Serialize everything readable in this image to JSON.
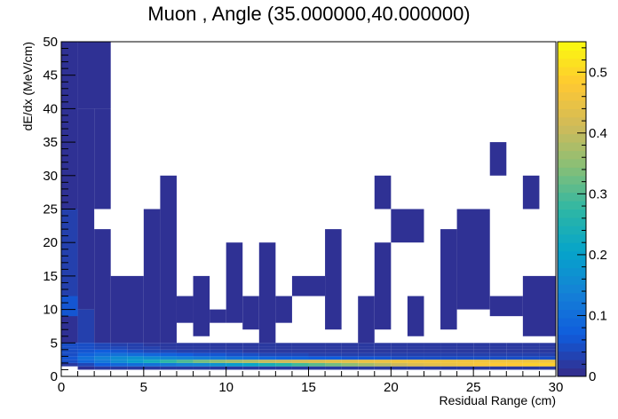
{
  "chart_data": {
    "type": "heatmap",
    "title": "Muon , Angle (35.000000,40.000000)",
    "xlabel": "Residual Range (cm)",
    "ylabel": "dE/dx (MeV/cm)",
    "xlim": [
      0,
      30
    ],
    "ylim": [
      0,
      50
    ],
    "zlim": [
      0,
      0.55
    ],
    "x_ticks": [
      0,
      5,
      10,
      15,
      20,
      25,
      30
    ],
    "y_ticks": [
      0,
      5,
      10,
      15,
      20,
      25,
      30,
      35,
      40,
      45,
      50
    ],
    "z_ticks": [
      0,
      0.1,
      0.2,
      0.3,
      0.4,
      0.5
    ],
    "x_bins": 30,
    "y_bins": 100,
    "grid": false,
    "colormap": "kBird",
    "colors": {
      "bird": [
        "#352a87",
        "#0f5cdd",
        "#1481d6",
        "#06a4ca",
        "#2eb7a4",
        "#87bf77",
        "#d1bb59",
        "#fec832",
        "#f9fb0e"
      ],
      "empty": "#ffffff",
      "axis": "#000000"
    },
    "bins_low": [
      [
        0,
        1,
        2,
        3,
        4,
        5,
        6,
        7,
        8,
        9,
        10,
        11,
        12,
        13,
        14,
        15,
        16,
        17,
        18,
        19,
        20,
        21,
        22,
        23,
        24,
        25,
        26,
        27,
        28,
        29
      ],
      [
        1.0,
        1.5,
        2.0,
        2.5,
        3.0,
        3.5,
        4.0,
        4.5
      ],
      {
        "x0": [
          0.0,
          0.02,
          0.05,
          0.06,
          0.05,
          0.05,
          0.05,
          0.05
        ],
        "x1": [
          0.01,
          0.04,
          0.09,
          0.11,
          0.08,
          0.06,
          0.05,
          0.05
        ],
        "x2": [
          0.02,
          0.07,
          0.12,
          0.14,
          0.1,
          0.07,
          0.04,
          0.04
        ],
        "x3": [
          0.02,
          0.09,
          0.16,
          0.16,
          0.11,
          0.06,
          0.04,
          0.03
        ],
        "x4": [
          0.02,
          0.1,
          0.19,
          0.17,
          0.1,
          0.05,
          0.03,
          0.03
        ],
        "x5": [
          0.02,
          0.11,
          0.23,
          0.16,
          0.09,
          0.04,
          0.03,
          0.02
        ],
        "x6": [
          0.02,
          0.12,
          0.27,
          0.15,
          0.08,
          0.04,
          0.02,
          0.02
        ],
        "x7": [
          0.02,
          0.14,
          0.3,
          0.14,
          0.07,
          0.03,
          0.02,
          0.02
        ],
        "x8": [
          0.02,
          0.15,
          0.33,
          0.13,
          0.06,
          0.03,
          0.02,
          0.02
        ],
        "x9": [
          0.02,
          0.17,
          0.35,
          0.12,
          0.06,
          0.03,
          0.02,
          0.02
        ],
        "x10": [
          0.02,
          0.19,
          0.37,
          0.11,
          0.05,
          0.03,
          0.02,
          0.02
        ],
        "x11": [
          0.02,
          0.21,
          0.38,
          0.1,
          0.05,
          0.02,
          0.02,
          0.02
        ],
        "x12": [
          0.02,
          0.24,
          0.4,
          0.09,
          0.04,
          0.02,
          0.02,
          0.02
        ],
        "x13": [
          0.02,
          0.26,
          0.41,
          0.08,
          0.04,
          0.02,
          0.02,
          0.02
        ],
        "x14": [
          0.02,
          0.29,
          0.42,
          0.08,
          0.04,
          0.02,
          0.02,
          0.02
        ],
        "x15": [
          0.02,
          0.31,
          0.43,
          0.07,
          0.03,
          0.02,
          0.02,
          0.02
        ],
        "x16": [
          0.02,
          0.33,
          0.44,
          0.07,
          0.03,
          0.02,
          0.02,
          0.02
        ],
        "x17": [
          0.02,
          0.35,
          0.44,
          0.06,
          0.03,
          0.02,
          0.02,
          0.02
        ],
        "x18": [
          0.02,
          0.37,
          0.45,
          0.06,
          0.03,
          0.02,
          0.02,
          0.02
        ],
        "x19": [
          0.02,
          0.39,
          0.45,
          0.06,
          0.03,
          0.02,
          0.02,
          0.02
        ],
        "x20": [
          0.02,
          0.41,
          0.46,
          0.05,
          0.03,
          0.02,
          0.02,
          0.02
        ],
        "x21": [
          0.02,
          0.43,
          0.46,
          0.05,
          0.03,
          0.02,
          0.02,
          0.02
        ],
        "x22": [
          0.02,
          0.44,
          0.46,
          0.05,
          0.03,
          0.02,
          0.02,
          0.02
        ],
        "x23": [
          0.02,
          0.45,
          0.46,
          0.05,
          0.03,
          0.02,
          0.02,
          0.02
        ],
        "x24": [
          0.02,
          0.46,
          0.46,
          0.05,
          0.03,
          0.02,
          0.02,
          0.02
        ],
        "x25": [
          0.02,
          0.47,
          0.46,
          0.05,
          0.03,
          0.02,
          0.02,
          0.02
        ],
        "x26": [
          0.02,
          0.48,
          0.46,
          0.05,
          0.03,
          0.02,
          0.02,
          0.02
        ],
        "x27": [
          0.02,
          0.48,
          0.46,
          0.05,
          0.03,
          0.02,
          0.02,
          0.02
        ],
        "x28": [
          0.02,
          0.49,
          0.46,
          0.05,
          0.03,
          0.02,
          0.02,
          0.02
        ],
        "x29": [
          0.02,
          0.49,
          0.46,
          0.05,
          0.03,
          0.02,
          0.02,
          0.02
        ]
      }
    ],
    "bins_high": [
      {
        "x": [
          0,
          1
        ],
        "y": [
          5,
          50
        ],
        "value": 0.01
      },
      {
        "x": [
          1,
          3
        ],
        "y": [
          40,
          50
        ],
        "value": 0.01
      },
      {
        "x": [
          1,
          2
        ],
        "y": [
          10,
          40
        ],
        "value": 0.01
      },
      {
        "x": [
          2,
          3
        ],
        "y": [
          25,
          40
        ],
        "value": 0.01
      },
      {
        "x": [
          0,
          1
        ],
        "y": [
          12,
          25
        ],
        "value": 0.03
      },
      {
        "x": [
          0,
          1
        ],
        "y": [
          9,
          12
        ],
        "value": 0.06
      },
      {
        "x": [
          1,
          2
        ],
        "y": [
          5,
          10
        ],
        "value": 0.03
      },
      {
        "x": [
          2,
          3
        ],
        "y": [
          5,
          22
        ],
        "value": 0.01
      },
      {
        "x": [
          3,
          5
        ],
        "y": [
          5,
          15
        ],
        "value": 0.01
      },
      {
        "x": [
          5,
          6
        ],
        "y": [
          5,
          25
        ],
        "value": 0.01
      },
      {
        "x": [
          6,
          7
        ],
        "y": [
          5,
          30
        ],
        "value": 0.01
      },
      {
        "x": [
          7,
          8
        ],
        "y": [
          8,
          12
        ],
        "value": 0.01
      },
      {
        "x": [
          8,
          9
        ],
        "y": [
          6,
          15
        ],
        "value": 0.01
      },
      {
        "x": [
          9,
          10
        ],
        "y": [
          8,
          10
        ],
        "value": 0.01
      },
      {
        "x": [
          10,
          11
        ],
        "y": [
          8,
          20
        ],
        "value": 0.01
      },
      {
        "x": [
          11,
          12
        ],
        "y": [
          7,
          12
        ],
        "value": 0.01
      },
      {
        "x": [
          12,
          13
        ],
        "y": [
          5,
          20
        ],
        "value": 0.01
      },
      {
        "x": [
          13,
          14
        ],
        "y": [
          8,
          12
        ],
        "value": 0.01
      },
      {
        "x": [
          14,
          16
        ],
        "y": [
          12,
          15
        ],
        "value": 0.01
      },
      {
        "x": [
          16,
          17
        ],
        "y": [
          7,
          22
        ],
        "value": 0.01
      },
      {
        "x": [
          18,
          19
        ],
        "y": [
          5,
          12
        ],
        "value": 0.01
      },
      {
        "x": [
          19,
          20
        ],
        "y": [
          7,
          20
        ],
        "value": 0.01
      },
      {
        "x": [
          20,
          22
        ],
        "y": [
          20,
          25
        ],
        "value": 0.01
      },
      {
        "x": [
          19,
          20
        ],
        "y": [
          25,
          30
        ],
        "value": 0.01
      },
      {
        "x": [
          21,
          22
        ],
        "y": [
          6,
          12
        ],
        "value": 0.01
      },
      {
        "x": [
          23,
          24
        ],
        "y": [
          7,
          22
        ],
        "value": 0.01
      },
      {
        "x": [
          24,
          26
        ],
        "y": [
          10,
          25
        ],
        "value": 0.01
      },
      {
        "x": [
          26,
          27
        ],
        "y": [
          30,
          35
        ],
        "value": 0.01
      },
      {
        "x": [
          26,
          28
        ],
        "y": [
          9,
          12
        ],
        "value": 0.01
      },
      {
        "x": [
          28,
          29
        ],
        "y": [
          25,
          30
        ],
        "value": 0.01
      },
      {
        "x": [
          28,
          30
        ],
        "y": [
          6,
          15
        ],
        "value": 0.01
      }
    ]
  }
}
